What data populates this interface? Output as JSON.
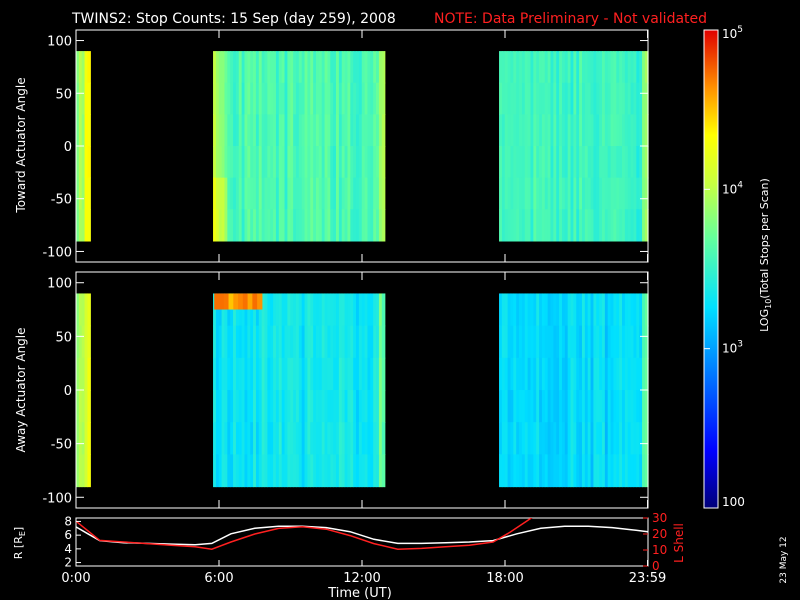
{
  "title": "TWINS2: Stop Counts: 15 Sep (day 259), 2008",
  "note": "NOTE: Data Preliminary - Not validated",
  "side_label": "23 May 12",
  "colorbar": {
    "label_prefix": "LOG",
    "label_sub": "10",
    "label_suffix": "(Total Stops per Scan)",
    "ticks": [
      {
        "value": 100000,
        "label_base": "10",
        "label_exp": "5"
      },
      {
        "value": 10000,
        "label_base": "10",
        "label_exp": "4"
      },
      {
        "value": 1000,
        "label_base": "10",
        "label_exp": "3"
      },
      {
        "value": 100,
        "label_base": "100",
        "label_exp": ""
      }
    ]
  },
  "chart_data": [
    {
      "type": "heatmap",
      "ylabel": "Toward Actuator Angle",
      "ylim": [
        -110,
        110
      ],
      "yticks": [
        "100",
        "50",
        "0",
        "-50",
        "-100"
      ],
      "ytick_values": [
        100,
        50,
        0,
        -50,
        -100
      ],
      "angle_range": [
        -90,
        90
      ],
      "xlim_hours": [
        0,
        24
      ],
      "color_scale": "log10 counts, 100 to 100000, rainbow",
      "data_intervals_hours": [
        [
          0.0,
          0.6
        ],
        [
          5.75,
          12.95
        ],
        [
          17.75,
          24.0
        ]
      ],
      "typical_counts": {
        "early": 8000,
        "midday_start": 12000,
        "midday": 4000,
        "evening": 3500
      }
    },
    {
      "type": "heatmap",
      "ylabel": "Away Actuator Angle",
      "ylim": [
        -110,
        110
      ],
      "yticks": [
        "100",
        "50",
        "0",
        "-50",
        "-100"
      ],
      "ytick_values": [
        100,
        50,
        0,
        -50,
        -100
      ],
      "angle_range": [
        -90,
        90
      ],
      "xlim_hours": [
        0,
        24
      ],
      "color_scale": "log10 counts, 100 to 100000, rainbow",
      "data_intervals_hours": [
        [
          0.0,
          0.6
        ],
        [
          5.75,
          12.95
        ],
        [
          17.75,
          24.0
        ]
      ],
      "typical_counts": {
        "early": 8000,
        "midday": 2200,
        "evening": 1800
      },
      "hot_region": {
        "hours": [
          5.8,
          7.7
        ],
        "angle": [
          75,
          90
        ],
        "counts": 40000
      }
    },
    {
      "type": "line",
      "xlabel": "Time (UT)",
      "xticks": [
        "0:00",
        "6:00",
        "12:00",
        "18:00",
        "23:59"
      ],
      "xtick_hours": [
        0,
        6,
        12,
        18,
        23.98
      ],
      "left_ylabel": "R [R",
      "left_ylabel_sub": "E",
      "left_ylabel_end": "]",
      "left_yticks": [
        "8",
        "6",
        "4",
        "2"
      ],
      "left_ytick_values": [
        8,
        6,
        4,
        2
      ],
      "left_ylim": [
        1.5,
        8.5
      ],
      "right_ylabel": "L Shell",
      "right_yticks": [
        "30",
        "20",
        "10",
        "0"
      ],
      "right_ytick_values": [
        30,
        20,
        10,
        0
      ],
      "right_ylim": [
        0,
        30
      ],
      "series": [
        {
          "name": "R [RE]",
          "color": "#ffffff",
          "axis": "left",
          "x": [
            0,
            0.5,
            1,
            2,
            3,
            4,
            5,
            5.7,
            6.5,
            7.5,
            8.5,
            9.5,
            10.5,
            11.5,
            12.5,
            13.5,
            14.5,
            15.5,
            16.5,
            17.5,
            18.5,
            19.5,
            20.5,
            21.5,
            22.5,
            23.3,
            24
          ],
          "y": [
            7.2,
            6.2,
            5.2,
            4.9,
            4.8,
            4.7,
            4.6,
            4.8,
            6.2,
            7.0,
            7.3,
            7.3,
            7.1,
            6.5,
            5.4,
            4.8,
            4.8,
            4.9,
            5.0,
            5.2,
            6.2,
            7.0,
            7.3,
            7.3,
            7.1,
            6.8,
            6.5
          ]
        },
        {
          "name": "L Shell",
          "color": "#ff2020",
          "axis": "right",
          "x": [
            0,
            0.5,
            1,
            2,
            3,
            4,
            5,
            5.7,
            6.5,
            7.5,
            8.5,
            9.5,
            10.5,
            11.5,
            12.5,
            13.5,
            14.5,
            15.5,
            16.5,
            17.5,
            18.2,
            18.9,
            19.2
          ],
          "y": [
            28,
            22,
            16,
            15,
            14,
            13,
            12,
            10.5,
            15,
            20,
            23.5,
            24.5,
            23,
            19,
            14,
            10.5,
            11,
            12,
            13,
            15,
            21,
            28,
            31
          ]
        }
      ]
    }
  ]
}
